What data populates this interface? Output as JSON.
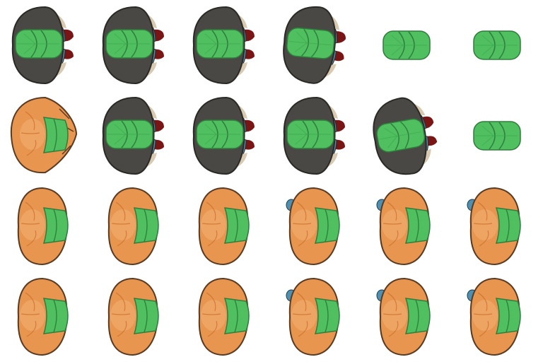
{
  "grid": {
    "rows": 4,
    "cols": 6,
    "cells": [
      {
        "variant": "gray",
        "tilt": 0,
        "tail": "full"
      },
      {
        "variant": "gray",
        "tilt": 0,
        "tail": "full"
      },
      {
        "variant": "gray",
        "tilt": 0,
        "tail": "full"
      },
      {
        "variant": "gray",
        "tilt": 5,
        "tail": "full"
      },
      {
        "variant": "green-only",
        "tilt": 0,
        "tail": "none"
      },
      {
        "variant": "green-only",
        "tilt": 0,
        "tail": "none"
      },
      {
        "variant": "orange-spiky",
        "tilt": 0,
        "tail": "none"
      },
      {
        "variant": "gray",
        "tilt": 0,
        "tail": "full"
      },
      {
        "variant": "gray",
        "tilt": 0,
        "tail": "full"
      },
      {
        "variant": "gray",
        "tilt": 0,
        "tail": "full"
      },
      {
        "variant": "gray",
        "tilt": -10,
        "tail": "full"
      },
      {
        "variant": "green-only",
        "tilt": 0,
        "tail": "none"
      },
      {
        "variant": "orange",
        "tilt": 0,
        "tail": "none"
      },
      {
        "variant": "orange",
        "tilt": 0,
        "tail": "none"
      },
      {
        "variant": "orange",
        "tilt": 0,
        "tail": "small"
      },
      {
        "variant": "orange",
        "tilt": 0,
        "tail": "bumps"
      },
      {
        "variant": "orange",
        "tilt": 0,
        "tail": "bumps"
      },
      {
        "variant": "orange",
        "tilt": 0,
        "tail": "bumps"
      },
      {
        "variant": "orange",
        "tilt": 0,
        "tail": "none"
      },
      {
        "variant": "orange",
        "tilt": 0,
        "tail": "none"
      },
      {
        "variant": "orange",
        "tilt": 0,
        "tail": "small"
      },
      {
        "variant": "orange",
        "tilt": 0,
        "tail": "bumps"
      },
      {
        "variant": "orange",
        "tilt": 0,
        "tail": "bumps"
      },
      {
        "variant": "orange",
        "tilt": 0,
        "tail": "bumps"
      }
    ]
  },
  "colors": {
    "gray_body": "#4a4845",
    "gray_edge": "#2a2926",
    "green": "#4fbf5f",
    "green_edge": "#2e7d3b",
    "blue": "#4f8fb0",
    "maroon": "#7a1515",
    "tan": "#d8c9b0",
    "orange": "#e8954f",
    "orange_light": "#f2b277",
    "orange_edge": "#5a3a20"
  }
}
